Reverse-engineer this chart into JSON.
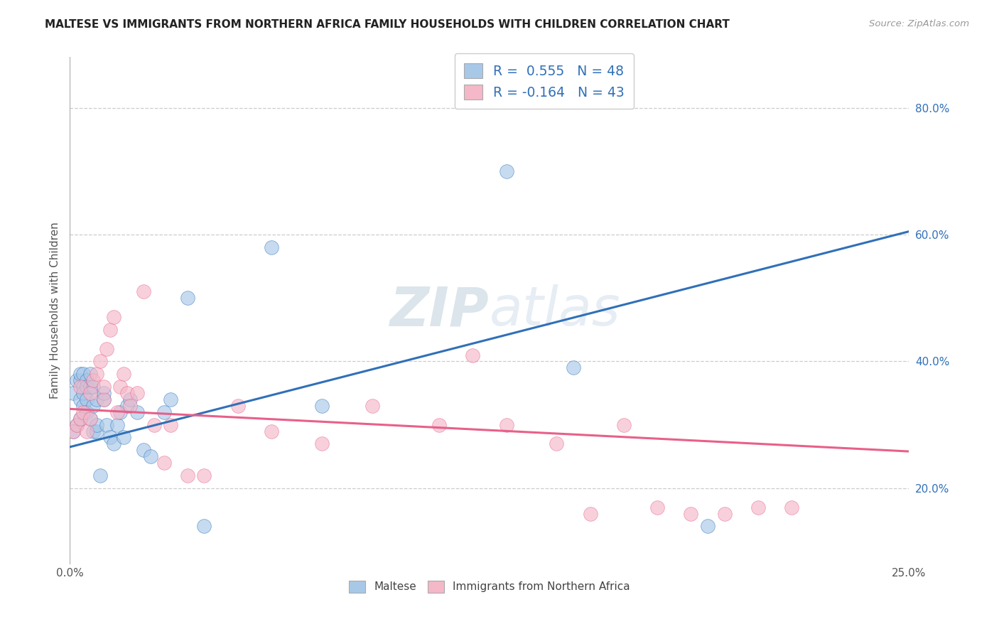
{
  "title": "MALTESE VS IMMIGRANTS FROM NORTHERN AFRICA FAMILY HOUSEHOLDS WITH CHILDREN CORRELATION CHART",
  "source": "Source: ZipAtlas.com",
  "ylabel": "Family Households with Children",
  "xlim": [
    0.0,
    0.25
  ],
  "ylim": [
    0.08,
    0.88
  ],
  "x_ticks": [
    0.0,
    0.05,
    0.1,
    0.15,
    0.2,
    0.25
  ],
  "x_tick_labels": [
    "0.0%",
    "",
    "",
    "",
    "",
    "25.0%"
  ],
  "y_ticks_right": [
    0.2,
    0.4,
    0.6,
    0.8
  ],
  "y_tick_labels_right": [
    "20.0%",
    "40.0%",
    "60.0%",
    "80.0%"
  ],
  "blue_color": "#a8c8e8",
  "pink_color": "#f4b8c8",
  "blue_line_color": "#3070b8",
  "pink_line_color": "#e8608a",
  "legend_blue_label": "R =  0.555   N = 48",
  "legend_pink_label": "R = -0.164   N = 43",
  "watermark": "ZIPatlas",
  "blue_scatter_x": [
    0.001,
    0.001,
    0.002,
    0.002,
    0.003,
    0.003,
    0.003,
    0.003,
    0.004,
    0.004,
    0.004,
    0.004,
    0.005,
    0.005,
    0.005,
    0.005,
    0.006,
    0.006,
    0.006,
    0.007,
    0.007,
    0.007,
    0.008,
    0.008,
    0.008,
    0.009,
    0.01,
    0.01,
    0.011,
    0.012,
    0.013,
    0.014,
    0.015,
    0.016,
    0.017,
    0.018,
    0.02,
    0.022,
    0.024,
    0.028,
    0.03,
    0.035,
    0.04,
    0.06,
    0.075,
    0.13,
    0.15,
    0.19
  ],
  "blue_scatter_y": [
    0.29,
    0.35,
    0.3,
    0.37,
    0.31,
    0.34,
    0.37,
    0.38,
    0.33,
    0.36,
    0.38,
    0.35,
    0.34,
    0.37,
    0.36,
    0.32,
    0.31,
    0.36,
    0.38,
    0.29,
    0.33,
    0.36,
    0.29,
    0.3,
    0.34,
    0.22,
    0.34,
    0.35,
    0.3,
    0.28,
    0.27,
    0.3,
    0.32,
    0.28,
    0.33,
    0.34,
    0.32,
    0.26,
    0.25,
    0.32,
    0.34,
    0.5,
    0.14,
    0.58,
    0.33,
    0.7,
    0.39,
    0.14
  ],
  "pink_scatter_x": [
    0.001,
    0.002,
    0.003,
    0.003,
    0.004,
    0.005,
    0.006,
    0.006,
    0.007,
    0.008,
    0.009,
    0.01,
    0.01,
    0.011,
    0.012,
    0.013,
    0.014,
    0.015,
    0.016,
    0.017,
    0.018,
    0.02,
    0.022,
    0.025,
    0.028,
    0.03,
    0.035,
    0.04,
    0.05,
    0.06,
    0.075,
    0.09,
    0.11,
    0.12,
    0.13,
    0.145,
    0.155,
    0.165,
    0.175,
    0.185,
    0.195,
    0.205,
    0.215
  ],
  "pink_scatter_y": [
    0.29,
    0.3,
    0.31,
    0.36,
    0.32,
    0.29,
    0.31,
    0.35,
    0.37,
    0.38,
    0.4,
    0.34,
    0.36,
    0.42,
    0.45,
    0.47,
    0.32,
    0.36,
    0.38,
    0.35,
    0.33,
    0.35,
    0.51,
    0.3,
    0.24,
    0.3,
    0.22,
    0.22,
    0.33,
    0.29,
    0.27,
    0.33,
    0.3,
    0.41,
    0.3,
    0.27,
    0.16,
    0.3,
    0.17,
    0.16,
    0.16,
    0.17,
    0.17
  ],
  "blue_line_x": [
    0.0,
    0.25
  ],
  "blue_line_y": [
    0.265,
    0.605
  ],
  "pink_line_x": [
    0.0,
    0.25
  ],
  "pink_line_y": [
    0.325,
    0.258
  ]
}
